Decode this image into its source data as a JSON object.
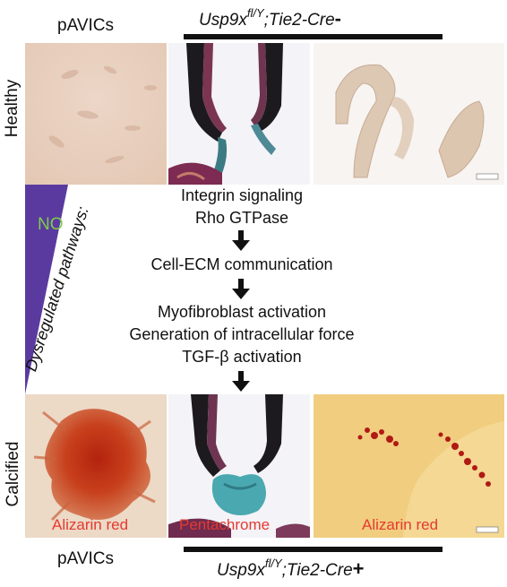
{
  "headers": {
    "top_left": "pAVICs",
    "bottom_left": "pAVICs",
    "top_genotype": {
      "base": "Usp9x",
      "sup": "fl/Y",
      "rest": ";Tie2-Cre",
      "sign": "-"
    },
    "bottom_genotype": {
      "base": "Usp9x",
      "sup": "fl/Y",
      "rest": ";Tie2-Cre",
      "sign": "+"
    }
  },
  "rows": {
    "healthy": "Healthy",
    "calcified": "Calcified"
  },
  "wedge": {
    "no_label": "NO",
    "dysregulated_label": "Dysregulated pathways:",
    "color": "#5b3aa0",
    "no_color": "#7ccf4a"
  },
  "pathway": {
    "step1": [
      "Integrin signaling",
      "Rho GTPase"
    ],
    "step2": [
      "Cell-ECM communication"
    ],
    "step3": [
      "Myofibroblast activation",
      "Generation of intracellular force",
      "TGF-β activation"
    ]
  },
  "captions": {
    "alizarin_left": "Alizarin red",
    "pentachrome": "Pentachrome",
    "alizarin_right": "Alizarin red",
    "color": "#e53a30"
  }
}
